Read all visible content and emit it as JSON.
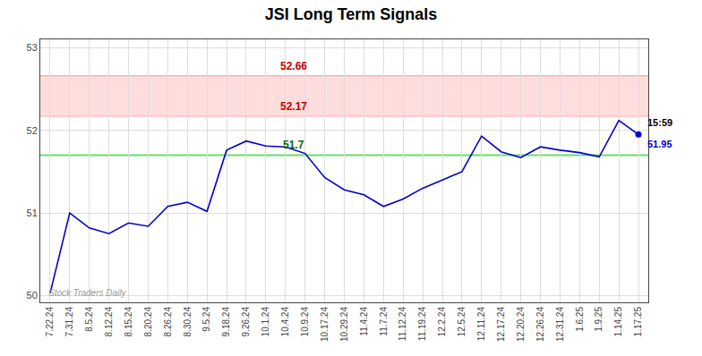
{
  "chart_data": {
    "type": "line",
    "title": "JSI Long Term Signals",
    "categories": [
      "7.22.24",
      "7.31.24",
      "8.5.24",
      "8.12.24",
      "8.15.24",
      "8.20.24",
      "8.26.24",
      "8.30.24",
      "9.5.24",
      "9.18.24",
      "9.26.24",
      "10.1.24",
      "10.4.24",
      "10.9.24",
      "10.17.24",
      "10.29.24",
      "11.4.24",
      "11.7.24",
      "11.12.24",
      "11.19.24",
      "12.2.24",
      "12.5.24",
      "12.11.24",
      "12.17.24",
      "12.20.24",
      "12.26.24",
      "12.31.24",
      "1.6.25",
      "1.9.25",
      "1.14.25",
      "1.17.25"
    ],
    "values": [
      50.03,
      51.0,
      50.82,
      50.75,
      50.88,
      50.84,
      51.08,
      51.13,
      51.02,
      51.76,
      51.87,
      51.81,
      51.8,
      51.72,
      51.43,
      51.28,
      51.22,
      51.08,
      51.17,
      51.3,
      51.4,
      51.5,
      51.93,
      51.74,
      51.67,
      51.8,
      51.76,
      51.73,
      51.68,
      52.12,
      51.95
    ],
    "color": "#0000cc",
    "ylim": [
      49.92,
      53.1
    ],
    "yticks": [
      50,
      51,
      52,
      53
    ],
    "grid": true,
    "grid_color": "#dddddd",
    "background_color": "#ffffff",
    "band": {
      "from": 52.17,
      "to": 52.66,
      "color": "#ffdddd"
    },
    "hlines": [
      {
        "value": 52.66,
        "label": "52.66",
        "color": "#ffaaaa",
        "label_color": "#cc0000"
      },
      {
        "value": 52.17,
        "label": "52.17",
        "color": "#ffaaaa",
        "label_color": "#cc0000"
      },
      {
        "value": 51.7,
        "label": "51.7",
        "color": "#66dd66",
        "label_color": "#006600"
      }
    ],
    "end_labels": [
      {
        "text": "15:59",
        "color": "#000000"
      },
      {
        "text": "51.95",
        "color": "#0000cc"
      }
    ],
    "watermark": {
      "text": "Stock Traders Daily",
      "color": "#999999"
    }
  }
}
